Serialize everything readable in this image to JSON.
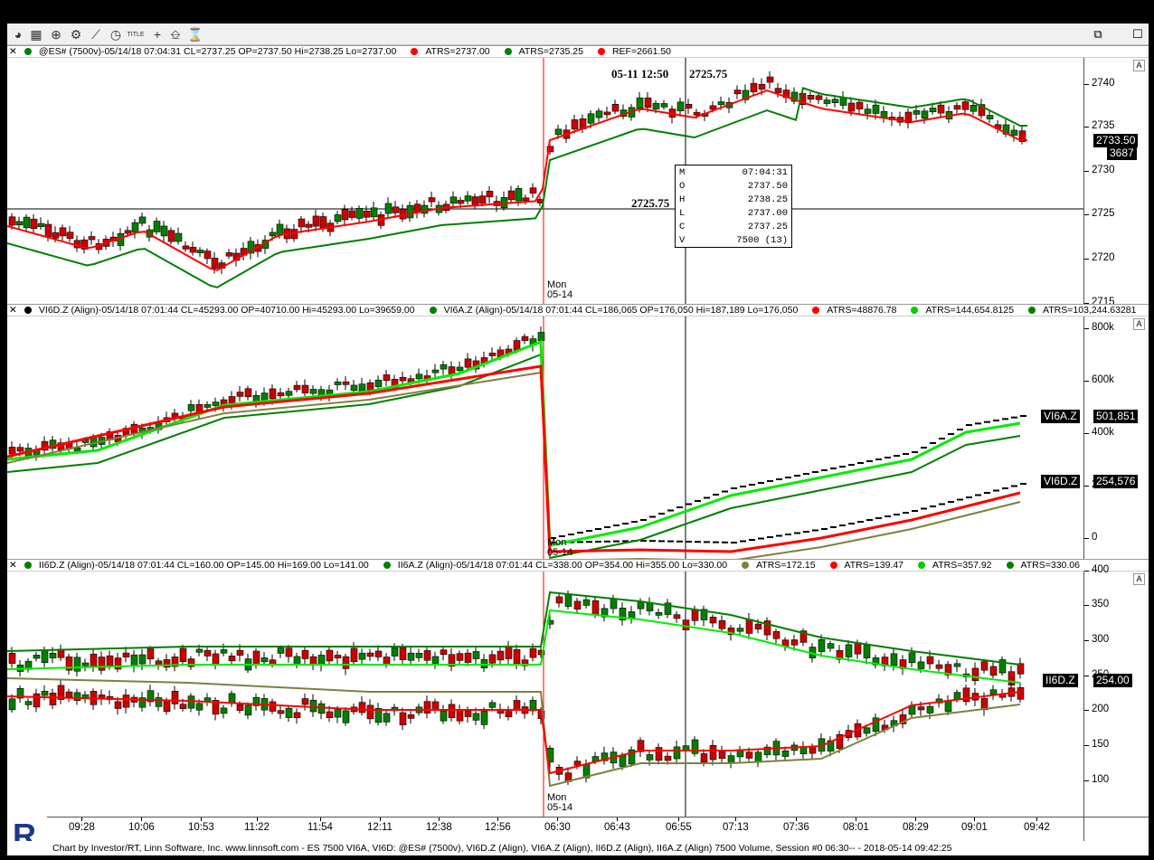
{
  "toolbar": {
    "icons": [
      "refresh-icon",
      "chart-type-icon",
      "zoom-icon",
      "gear-icon",
      "draw-line-icon",
      "alarm-clock-icon",
      "title-icon",
      "crosshair-icon",
      "eraser-icon",
      "hourglass-icon"
    ],
    "title_label": "TITLE",
    "restore_label": "⧉",
    "close_label": "☐"
  },
  "panes": [
    {
      "header": [
        {
          "text": "@ES# (7500v)-05/14/18 07:04:31 CL=2737.25 OP=2737.50 Hi=2738.25 Lo=2737.00",
          "color": "#008000"
        },
        {
          "text": "ATRS=2737.00",
          "color": "#ff0000"
        },
        {
          "text": "ATRS=2735.25",
          "color": "#008000"
        },
        {
          "text": "REF=2661.50",
          "color": "#ff0000"
        }
      ],
      "ticks": [
        "2740",
        "2735",
        "2730",
        "2725",
        "2720",
        "2715"
      ],
      "last_price": "2733.50",
      "volume": "3687",
      "annotation_top": "05-11 12:50",
      "annotation_top_value": "2725.75",
      "annotation_line_value": "2725.75",
      "session_label": "Mon",
      "session_date": "05-14"
    },
    {
      "header": [
        {
          "text": "VI6D.Z (Align)-05/14/18 07:01:44 CL=45293.00 OP=40710.00 Hi=45293.00 Lo=39659.00",
          "color": "#000000"
        },
        {
          "text": "VI6A.Z (Align)-05/14/18 07:01:44 CL=186,065 OP=176,050 Hi=187,189 Lo=176,050",
          "color": "#008000"
        },
        {
          "text": "ATRS=48876.78",
          "color": "#ff0000"
        },
        {
          "text": "ATRS=144,654.8125",
          "color": "#00cc00"
        },
        {
          "text": "ATRS=103,244.63281",
          "color": "#008000"
        }
      ],
      "ticks": [
        "800k",
        "600k",
        "400k",
        "200k",
        "0"
      ],
      "tag_a_label": "VI6A.Z",
      "tag_a_value": "501,851",
      "tag_d_label": "VI6D.Z",
      "tag_d_value": "254,576",
      "session_label": "Mon",
      "session_date": "05-14"
    },
    {
      "header": [
        {
          "text": "II6D.Z (Align)-05/14/18 07:01:44 CL=160.00 OP=145.00 Hi=169.00 Lo=141.00",
          "color": "#008000"
        },
        {
          "text": "II6A.Z (Align)-05/14/18 07:01:44 CL=338.00 OP=354.00 Hi=355.00 Lo=330.00",
          "color": "#008000"
        },
        {
          "text": "ATRS=172.15",
          "color": "#808040"
        },
        {
          "text": "ATRS=139.47",
          "color": "#ff0000"
        },
        {
          "text": "ATRS=357.92",
          "color": "#00cc00"
        },
        {
          "text": "ATRS=330.06",
          "color": "#008000"
        }
      ],
      "ticks": [
        "400",
        "350",
        "300",
        "250",
        "200",
        "150",
        "100"
      ],
      "tag_label": "II6D.Z",
      "tag_value": "254.00",
      "session_label": "Mon",
      "session_date": "05-14"
    }
  ],
  "time_axis": [
    "09:28",
    "10:06",
    "10:53",
    "11:22",
    "11:54",
    "12:11",
    "12:38",
    "12:56",
    "06:30",
    "06:43",
    "06:55",
    "07:13",
    "07:36",
    "08:01",
    "08:29",
    "09:01",
    "09:42"
  ],
  "tooltip": {
    "rows": [
      {
        "k": "M",
        "v": "07:04:31"
      },
      {
        "k": "O",
        "v": "2737.50"
      },
      {
        "k": "H",
        "v": "2738.25"
      },
      {
        "k": "L",
        "v": "2737.00"
      },
      {
        "k": "C",
        "v": "2737.25"
      },
      {
        "k": "V",
        "v": "7500 (13)"
      }
    ]
  },
  "footer": "Chart by Investor/RT, Linn Software, Inc. www.linnsoft.com - ES 7500 VI6A, VI6D: @ES# (7500v), VI6D.Z (Align), VI6A.Z (Align), II6D.Z (Align), II6A.Z (Align) 7500 Volume, Session #0 06:30-- - 2018-05-14 09:42:25",
  "logo_letter": "R",
  "colors": {
    "up": "#008000",
    "down": "#cc0000",
    "red_line": "#ff0000",
    "green_line": "#008000",
    "lime_line": "#00ee00",
    "olive_line": "#808040"
  }
}
